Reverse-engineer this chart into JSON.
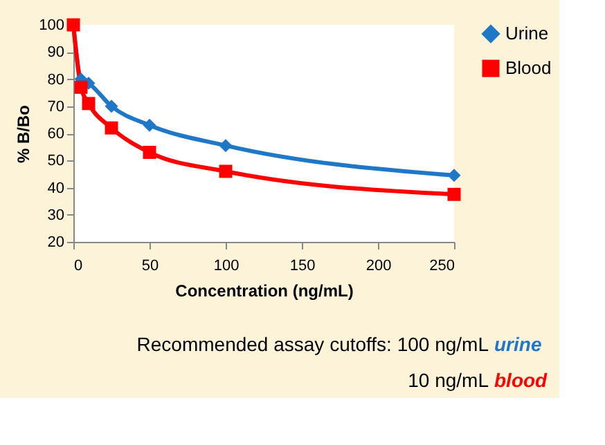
{
  "chart_data": {
    "type": "line",
    "xlabel": "Concentration (ng/mL)",
    "ylabel": "% B/Bo",
    "x": [
      0,
      5,
      10,
      25,
      50,
      100,
      250
    ],
    "series": [
      {
        "name": "Urine",
        "color": "#1f77c8",
        "marker": "diamond",
        "values": [
          100,
          80,
          78.5,
          70,
          63,
          55.5,
          44.5
        ]
      },
      {
        "name": "Blood",
        "color": "#ff0000",
        "marker": "square",
        "values": [
          100,
          77,
          71,
          62,
          53,
          46,
          37.5
        ]
      }
    ],
    "xlim": [
      0,
      250
    ],
    "xticks": [
      0,
      50,
      100,
      150,
      200,
      250
    ],
    "ylim": [
      20,
      100
    ],
    "yticks": [
      20,
      30,
      40,
      50,
      60,
      70,
      80,
      90,
      100
    ],
    "grid": false,
    "legend": "right",
    "line_style": "solid",
    "annotations": [
      "Recommended assay cutoffs: 100 ng/mL urine",
      "10 ng/mL blood"
    ]
  }
}
